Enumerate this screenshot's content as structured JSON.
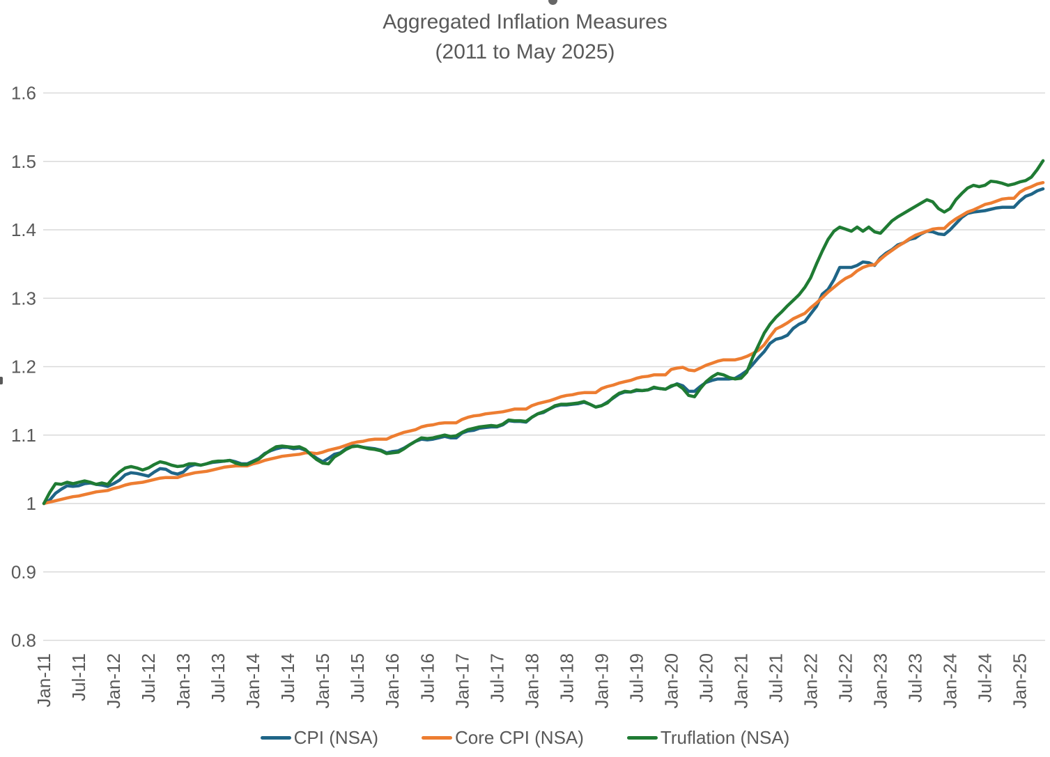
{
  "title": {
    "line1": "Aggregated Inflation Measures",
    "line2": "(2011 to May 2025)"
  },
  "colors": {
    "text": "#595959",
    "gridline": "#D9D9D9",
    "background": "#FFFFFF",
    "cpi_blue": "#1F6587",
    "core_cpi_orange": "#ED7D31",
    "truflation_green": "#1F7B33"
  },
  "chart_data": {
    "type": "line",
    "title": "Aggregated Inflation Measures",
    "subtitle": "(2011 to May 2025)",
    "x_start": "Jan-2011",
    "x_end": "May-2025",
    "x_frequency": "monthly",
    "x_points": 173,
    "x_tick_labels": [
      "Jan-11",
      "Jul-11",
      "Jan-12",
      "Jul-12",
      "Jan-13",
      "Jul-13",
      "Jan-14",
      "Jul-14",
      "Jan-15",
      "Jul-15",
      "Jan-16",
      "Jul-16",
      "Jan-17",
      "Jul-17",
      "Jan-18",
      "Jul-18",
      "Jan-19",
      "Jul-19",
      "Jan-20",
      "Jul-20",
      "Jan-21",
      "Jul-21",
      "Jan-22",
      "Jul-22",
      "Jan-23",
      "Jul-23",
      "Jan-24",
      "Jul-24",
      "Jan-25"
    ],
    "x_tick_interval_months": 6,
    "y_tick_labels": [
      "0.8",
      "0.9",
      "1",
      "1.1",
      "1.2",
      "1.3",
      "1.4",
      "1.5",
      "1.6"
    ],
    "y_ticks": [
      0.8,
      0.9,
      1.0,
      1.1,
      1.2,
      1.3,
      1.4,
      1.5,
      1.6
    ],
    "ylim": [
      0.8,
      1.6
    ],
    "grid": "horizontal",
    "legend_position": "bottom",
    "series": [
      {
        "name": "CPI (NSA)",
        "color": "#1F6587",
        "values": [
          1.0,
          1.005,
          1.015,
          1.021,
          1.026,
          1.025,
          1.026,
          1.029,
          1.03,
          1.028,
          1.027,
          1.025,
          1.029,
          1.034,
          1.042,
          1.045,
          1.044,
          1.042,
          1.04,
          1.046,
          1.051,
          1.05,
          1.045,
          1.043,
          1.046,
          1.054,
          1.057,
          1.056,
          1.058,
          1.06,
          1.061,
          1.062,
          1.063,
          1.061,
          1.058,
          1.058,
          1.062,
          1.066,
          1.073,
          1.077,
          1.08,
          1.082,
          1.082,
          1.08,
          1.081,
          1.078,
          1.072,
          1.066,
          1.061,
          1.066,
          1.072,
          1.074,
          1.08,
          1.084,
          1.084,
          1.082,
          1.081,
          1.08,
          1.078,
          1.074,
          1.076,
          1.077,
          1.081,
          1.086,
          1.091,
          1.094,
          1.093,
          1.094,
          1.096,
          1.098,
          1.096,
          1.096,
          1.103,
          1.106,
          1.107,
          1.11,
          1.111,
          1.112,
          1.112,
          1.115,
          1.121,
          1.12,
          1.12,
          1.119,
          1.126,
          1.131,
          1.133,
          1.138,
          1.142,
          1.144,
          1.144,
          1.145,
          1.146,
          1.148,
          1.145,
          1.141,
          1.143,
          1.148,
          1.154,
          1.16,
          1.163,
          1.163,
          1.165,
          1.165,
          1.166,
          1.169,
          1.168,
          1.167,
          1.171,
          1.175,
          1.172,
          1.164,
          1.164,
          1.171,
          1.177,
          1.18,
          1.182,
          1.182,
          1.182,
          1.183,
          1.188,
          1.194,
          1.203,
          1.213,
          1.222,
          1.234,
          1.24,
          1.242,
          1.246,
          1.256,
          1.262,
          1.266,
          1.277,
          1.288,
          1.306,
          1.313,
          1.327,
          1.345,
          1.345,
          1.345,
          1.348,
          1.353,
          1.352,
          1.348,
          1.359,
          1.366,
          1.371,
          1.378,
          1.381,
          1.386,
          1.388,
          1.394,
          1.398,
          1.397,
          1.394,
          1.393,
          1.4,
          1.409,
          1.418,
          1.424,
          1.426,
          1.427,
          1.428,
          1.43,
          1.432,
          1.433,
          1.433,
          1.433,
          1.442,
          1.449,
          1.452,
          1.457,
          1.46
        ]
      },
      {
        "name": "Core CPI (NSA)",
        "color": "#ED7D31",
        "values": [
          1.0,
          1.002,
          1.004,
          1.006,
          1.008,
          1.01,
          1.011,
          1.013,
          1.015,
          1.017,
          1.018,
          1.019,
          1.022,
          1.024,
          1.027,
          1.029,
          1.03,
          1.031,
          1.033,
          1.035,
          1.037,
          1.038,
          1.038,
          1.038,
          1.041,
          1.043,
          1.045,
          1.046,
          1.047,
          1.049,
          1.051,
          1.053,
          1.054,
          1.055,
          1.055,
          1.055,
          1.058,
          1.06,
          1.063,
          1.065,
          1.067,
          1.069,
          1.07,
          1.071,
          1.072,
          1.074,
          1.074,
          1.073,
          1.075,
          1.078,
          1.08,
          1.082,
          1.085,
          1.088,
          1.09,
          1.091,
          1.093,
          1.094,
          1.094,
          1.094,
          1.098,
          1.101,
          1.104,
          1.106,
          1.108,
          1.112,
          1.114,
          1.115,
          1.117,
          1.118,
          1.118,
          1.118,
          1.123,
          1.126,
          1.128,
          1.129,
          1.131,
          1.132,
          1.133,
          1.134,
          1.136,
          1.138,
          1.138,
          1.138,
          1.143,
          1.146,
          1.148,
          1.15,
          1.153,
          1.156,
          1.158,
          1.159,
          1.161,
          1.162,
          1.162,
          1.162,
          1.168,
          1.171,
          1.173,
          1.176,
          1.178,
          1.18,
          1.183,
          1.185,
          1.186,
          1.188,
          1.188,
          1.188,
          1.196,
          1.198,
          1.199,
          1.195,
          1.194,
          1.198,
          1.202,
          1.205,
          1.208,
          1.21,
          1.21,
          1.21,
          1.212,
          1.215,
          1.219,
          1.224,
          1.232,
          1.244,
          1.255,
          1.259,
          1.264,
          1.27,
          1.274,
          1.278,
          1.286,
          1.293,
          1.301,
          1.309,
          1.316,
          1.323,
          1.329,
          1.333,
          1.34,
          1.345,
          1.348,
          1.349,
          1.357,
          1.364,
          1.37,
          1.376,
          1.381,
          1.387,
          1.392,
          1.395,
          1.398,
          1.401,
          1.402,
          1.402,
          1.41,
          1.416,
          1.421,
          1.426,
          1.429,
          1.433,
          1.437,
          1.439,
          1.442,
          1.445,
          1.446,
          1.446,
          1.455,
          1.46,
          1.463,
          1.467,
          1.469
        ]
      },
      {
        "name": "Truflation (NSA)",
        "color": "#1F7B33",
        "values": [
          1.0,
          1.016,
          1.029,
          1.028,
          1.031,
          1.029,
          1.031,
          1.033,
          1.031,
          1.028,
          1.03,
          1.028,
          1.038,
          1.046,
          1.052,
          1.054,
          1.052,
          1.049,
          1.052,
          1.057,
          1.061,
          1.059,
          1.056,
          1.054,
          1.055,
          1.058,
          1.058,
          1.056,
          1.058,
          1.061,
          1.062,
          1.062,
          1.063,
          1.059,
          1.057,
          1.057,
          1.061,
          1.065,
          1.072,
          1.078,
          1.083,
          1.084,
          1.083,
          1.082,
          1.083,
          1.079,
          1.071,
          1.064,
          1.059,
          1.058,
          1.068,
          1.073,
          1.079,
          1.083,
          1.084,
          1.082,
          1.08,
          1.079,
          1.077,
          1.073,
          1.074,
          1.075,
          1.08,
          1.086,
          1.091,
          1.096,
          1.095,
          1.096,
          1.098,
          1.1,
          1.098,
          1.099,
          1.104,
          1.108,
          1.11,
          1.112,
          1.113,
          1.114,
          1.113,
          1.116,
          1.122,
          1.121,
          1.121,
          1.12,
          1.126,
          1.131,
          1.134,
          1.138,
          1.143,
          1.145,
          1.145,
          1.146,
          1.147,
          1.149,
          1.145,
          1.141,
          1.143,
          1.147,
          1.155,
          1.161,
          1.164,
          1.163,
          1.166,
          1.165,
          1.166,
          1.17,
          1.168,
          1.167,
          1.172,
          1.174,
          1.168,
          1.158,
          1.156,
          1.168,
          1.178,
          1.185,
          1.19,
          1.188,
          1.184,
          1.182,
          1.183,
          1.192,
          1.213,
          1.231,
          1.249,
          1.262,
          1.272,
          1.28,
          1.289,
          1.297,
          1.305,
          1.316,
          1.33,
          1.35,
          1.369,
          1.386,
          1.398,
          1.404,
          1.401,
          1.398,
          1.404,
          1.398,
          1.404,
          1.397,
          1.395,
          1.404,
          1.413,
          1.419,
          1.424,
          1.429,
          1.434,
          1.439,
          1.444,
          1.441,
          1.431,
          1.426,
          1.431,
          1.444,
          1.453,
          1.461,
          1.465,
          1.463,
          1.465,
          1.471,
          1.47,
          1.468,
          1.465,
          1.467,
          1.47,
          1.472,
          1.477,
          1.488,
          1.501
        ]
      }
    ]
  }
}
